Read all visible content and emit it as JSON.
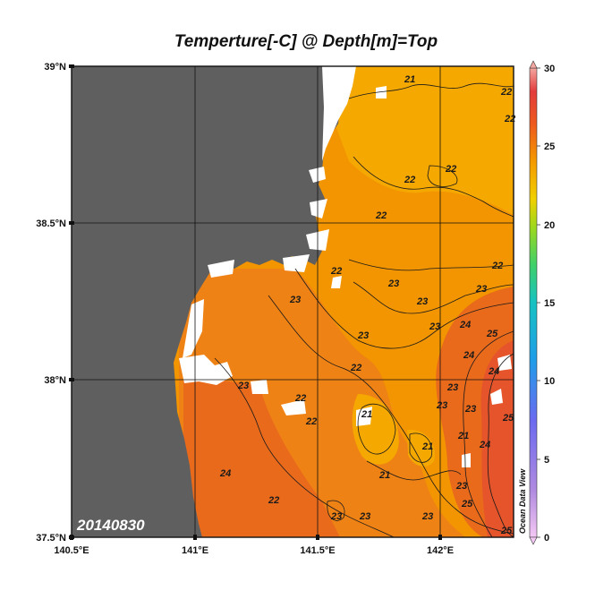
{
  "title": "Temperture[-C] @ Depth[m]=Top",
  "date_stamp": "20140830",
  "watermark": "Ocean Data View",
  "lat_labels": [
    "39°N",
    "38.5°N",
    "38°N",
    "37.5°N"
  ],
  "lon_labels": [
    "140.5°E",
    "141°E",
    "141.5°E",
    "142°E"
  ],
  "colorbar": {
    "ticks": [
      "30",
      "25",
      "20",
      "15",
      "10",
      "5",
      "0"
    ],
    "min": 0,
    "max": 30
  },
  "contour_labels": {
    "t21": "21",
    "t22": "22",
    "t23": "23",
    "t24": "24",
    "t25": "25"
  },
  "colors": {
    "land": "#5f5f5f",
    "water_21": "#f5a800",
    "water_22": "#f29500",
    "water_23": "#ef8214",
    "water_24": "#ea6a1c",
    "water_25": "#e5542a"
  }
}
